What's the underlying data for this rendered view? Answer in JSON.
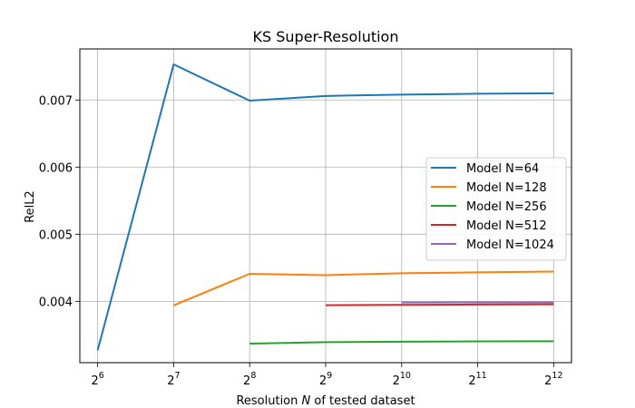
{
  "chart_data": {
    "type": "line",
    "title": "KS Super-Resolution",
    "xlabel_prefix": "Resolution ",
    "xlabel_var": "N",
    "xlabel_suffix": " of tested dataset",
    "ylabel": "RelL2",
    "x_scale": "log2",
    "xticks": [
      {
        "base": "2",
        "exp": "6",
        "value": 64
      },
      {
        "base": "2",
        "exp": "7",
        "value": 128
      },
      {
        "base": "2",
        "exp": "8",
        "value": 256
      },
      {
        "base": "2",
        "exp": "9",
        "value": 512
      },
      {
        "base": "2",
        "exp": "10",
        "value": 1024
      },
      {
        "base": "2",
        "exp": "11",
        "value": 2048
      },
      {
        "base": "2",
        "exp": "12",
        "value": 4096
      }
    ],
    "yticks": [
      "0.004",
      "0.005",
      "0.006",
      "0.007"
    ],
    "xlim": [
      54.4,
      4820
    ],
    "ylim": [
      0.003086,
      0.00776
    ],
    "grid": true,
    "legend_position": "center-right",
    "series": [
      {
        "name": "Model N=64",
        "color": "#1f77b4",
        "x": [
          64,
          128,
          256,
          512,
          1024,
          2048,
          4096
        ],
        "y": [
          0.00327,
          0.00753,
          0.00699,
          0.00706,
          0.00708,
          0.007093,
          0.0071
        ]
      },
      {
        "name": "Model N=128",
        "color": "#ff7f0e",
        "x": [
          128,
          256,
          512,
          1024,
          2048,
          4096
        ],
        "y": [
          0.00394,
          0.00441,
          0.00439,
          0.004418,
          0.004432,
          0.004444
        ]
      },
      {
        "name": "Model N=256",
        "color": "#2ca02c",
        "x": [
          256,
          512,
          1024,
          2048,
          4096
        ],
        "y": [
          0.00337,
          0.003392,
          0.003398,
          0.003403,
          0.003405
        ]
      },
      {
        "name": "Model N=512",
        "color": "#d62728",
        "x": [
          512,
          1024,
          2048,
          4096
        ],
        "y": [
          0.003942,
          0.003948,
          0.003952,
          0.003955
        ]
      },
      {
        "name": "Model N=1024",
        "color": "#9467bd",
        "x": [
          1024,
          2048,
          4096
        ],
        "y": [
          0.003982,
          0.003984,
          0.003985
        ]
      }
    ]
  }
}
